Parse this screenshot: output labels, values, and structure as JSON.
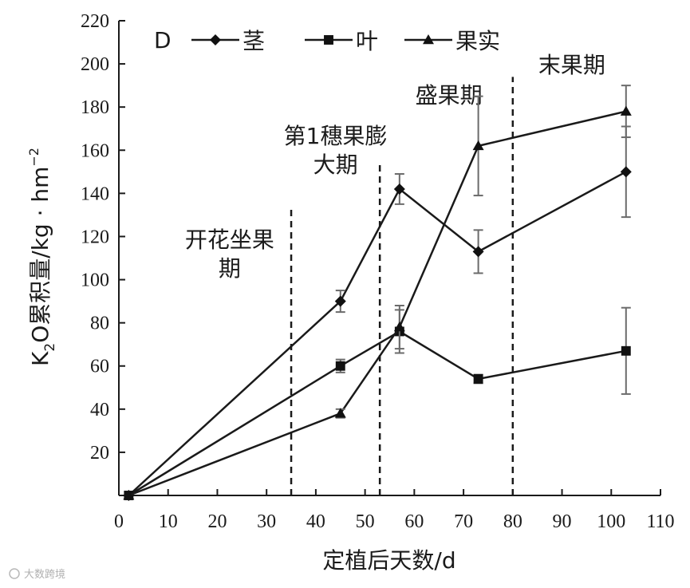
{
  "chart_data": {
    "type": "line",
    "panel_label": "D",
    "xlabel": "定植后天数/d",
    "ylabel_main": "K",
    "ylabel_sub": "2",
    "ylabel_rest": "O累积量/kg · hm",
    "ylabel_sup": "−2",
    "xlim": [
      0,
      110
    ],
    "ylim": [
      0,
      220
    ],
    "x_ticks": [
      0,
      10,
      20,
      30,
      40,
      50,
      60,
      70,
      80,
      90,
      100,
      110
    ],
    "y_ticks": [
      20,
      40,
      60,
      80,
      100,
      120,
      140,
      160,
      180,
      200,
      220
    ],
    "legend": [
      "茎",
      "叶",
      "果实"
    ],
    "series": [
      {
        "name": "茎",
        "marker": "diamond",
        "x": [
          2,
          45,
          57,
          73,
          103
        ],
        "values": [
          0,
          90,
          142,
          113,
          150
        ],
        "errors": [
          0,
          5,
          7,
          10,
          21
        ]
      },
      {
        "name": "叶",
        "marker": "square",
        "x": [
          2,
          45,
          57,
          73,
          103
        ],
        "values": [
          0,
          60,
          76,
          54,
          67
        ],
        "errors": [
          0,
          3,
          10,
          2,
          20
        ]
      },
      {
        "name": "果实",
        "marker": "triangle",
        "x": [
          2,
          45,
          57,
          73,
          103
        ],
        "values": [
          0,
          38,
          78,
          162,
          178
        ],
        "errors": [
          0,
          2,
          10,
          23,
          12
        ]
      }
    ],
    "phase_lines": [
      35,
      53,
      80
    ],
    "phase_labels": [
      {
        "lines": [
          "开花坐果",
          "期"
        ],
        "x": 22.5,
        "y": 115
      },
      {
        "lines": [
          "第1穗果膨",
          "大期"
        ],
        "x": 44,
        "y": 163
      },
      {
        "lines": [
          "盛果期"
        ],
        "x": 67,
        "y": 182
      },
      {
        "lines": [
          "末果期"
        ],
        "x": 92,
        "y": 196
      }
    ]
  },
  "watermark": "大数跨境"
}
